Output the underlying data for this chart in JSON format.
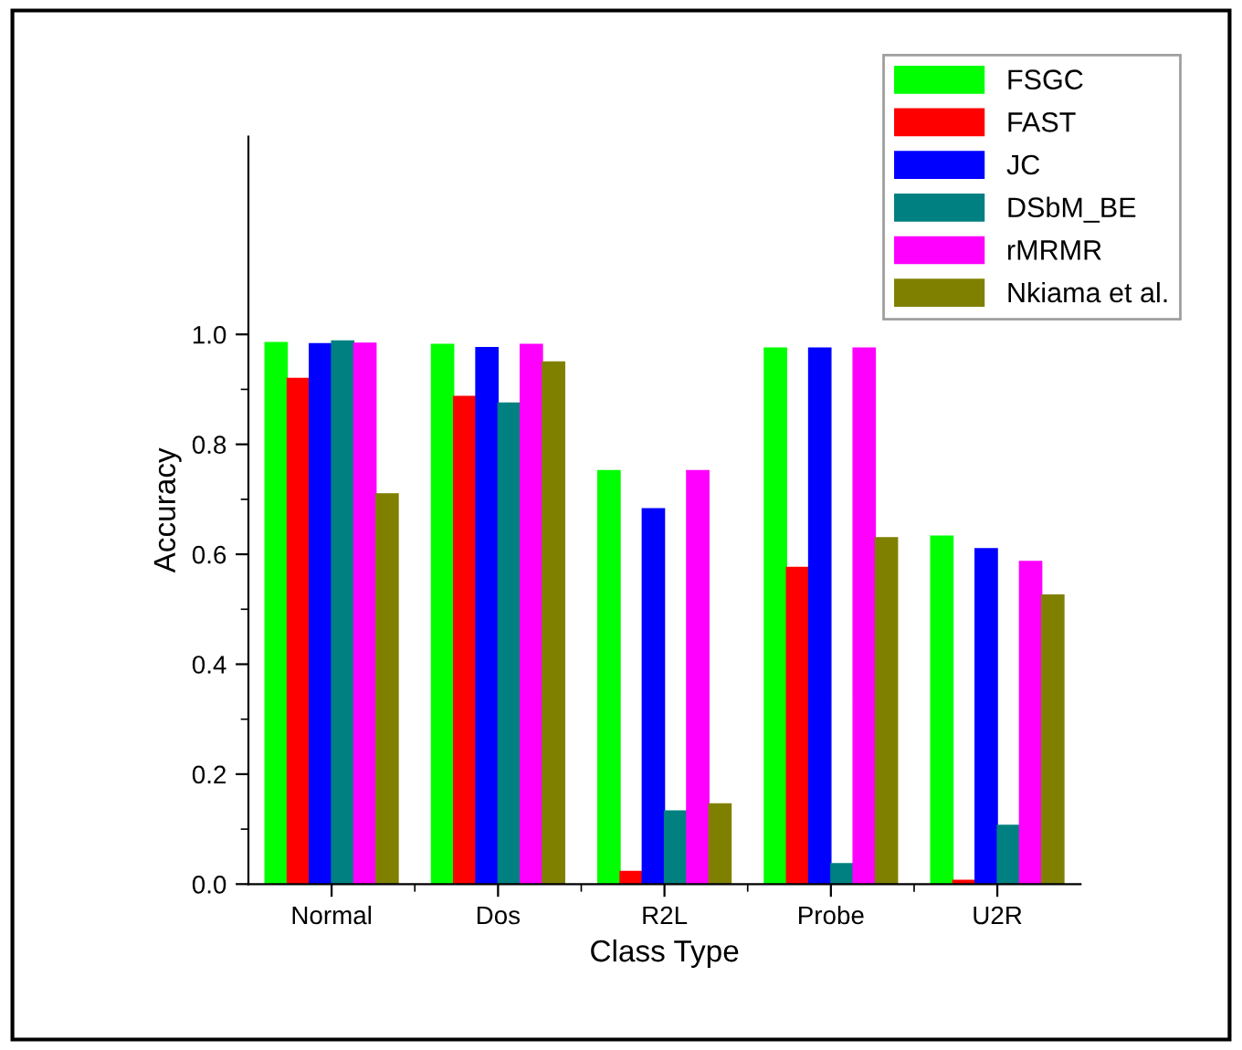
{
  "chart_data": {
    "type": "bar",
    "xlabel": "Class Type",
    "ylabel": "Accuracy",
    "categories": [
      "Normal",
      "Dos",
      "R2L",
      "Probe",
      "U2R"
    ],
    "series": [
      {
        "name": "FSGC",
        "color": "#00ff00",
        "values": [
          0.985,
          0.982,
          0.752,
          0.975,
          0.633
        ]
      },
      {
        "name": "FAST",
        "color": "#ff0000",
        "values": [
          0.92,
          0.887,
          0.023,
          0.576,
          0.007
        ]
      },
      {
        "name": "JC",
        "color": "#0000ff",
        "values": [
          0.983,
          0.976,
          0.683,
          0.975,
          0.61
        ]
      },
      {
        "name": "DSbM_BE",
        "color": "#008080",
        "values": [
          0.988,
          0.875,
          0.133,
          0.037,
          0.107
        ]
      },
      {
        "name": "rMRMR",
        "color": "#ff00ff",
        "values": [
          0.984,
          0.982,
          0.752,
          0.975,
          0.587
        ]
      },
      {
        "name": "Nkiama et al.",
        "color": "#808000",
        "values": [
          0.71,
          0.95,
          0.146,
          0.63,
          0.526
        ]
      }
    ],
    "ylim": [
      0,
      1.36
    ],
    "yticks": [
      {
        "value": 0,
        "label": "0.0"
      },
      0.2,
      0.4,
      0.6,
      0.8,
      {
        "value": 1,
        "label": "1.0"
      }
    ],
    "legend": "top right",
    "grid": false
  }
}
